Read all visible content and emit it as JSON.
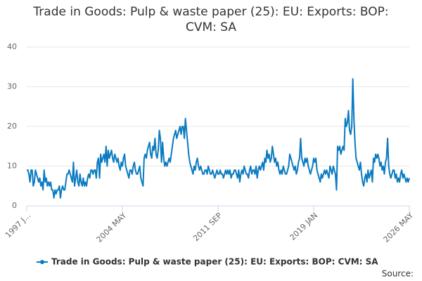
{
  "chart_data": {
    "type": "line",
    "title": "Trade in Goods: Pulp & waste paper (25): EU: Exports: BOP: CVM: SA",
    "source": "Source:",
    "categories": [
      "1997 J...",
      null,
      null,
      null,
      null,
      null,
      null,
      null,
      null,
      null,
      null,
      null,
      null,
      null,
      null,
      null,
      null,
      null,
      null,
      null,
      null,
      null,
      null,
      null,
      null,
      null,
      null,
      null,
      null,
      null,
      null,
      null,
      null,
      null,
      null,
      null,
      null,
      null,
      null,
      null,
      null,
      null,
      null,
      null,
      null,
      null,
      null,
      null,
      null,
      null,
      null,
      null,
      null,
      null,
      null,
      null,
      null,
      null,
      null,
      null,
      null,
      null,
      null,
      null,
      null,
      null,
      null,
      null,
      null,
      null,
      null,
      null,
      null,
      null,
      null,
      null,
      null,
      null,
      null,
      null,
      null,
      null,
      null,
      null,
      null,
      null,
      null,
      null,
      "2004 MAY",
      null,
      null,
      null,
      null,
      null,
      null,
      null,
      null,
      null,
      null,
      null,
      null,
      null,
      null,
      null,
      null,
      null,
      null,
      null,
      null,
      null,
      null,
      null,
      null,
      null,
      null,
      null,
      null,
      null,
      null,
      null,
      null,
      null,
      null,
      null,
      null,
      null,
      null,
      null,
      null,
      null,
      null,
      null,
      null,
      null,
      null,
      null,
      null,
      null,
      null,
      null,
      null,
      null,
      null,
      null,
      null,
      null,
      null,
      null,
      null,
      null,
      null,
      null,
      null,
      null,
      null,
      null,
      null,
      null,
      null,
      null,
      null,
      null,
      null,
      null,
      null,
      null,
      null,
      null,
      null,
      null,
      null,
      null,
      null,
      null,
      null,
      null,
      "2011 SEP",
      null,
      null,
      null,
      null,
      null,
      null,
      null,
      null,
      null,
      null,
      null,
      null,
      null,
      null,
      null,
      null,
      null,
      null,
      null,
      null,
      null,
      null,
      null,
      null,
      null,
      null,
      null,
      null,
      null,
      null,
      null,
      null,
      null,
      null,
      null,
      null,
      null,
      null,
      null,
      null,
      null,
      null,
      null,
      null,
      null,
      null,
      null,
      null,
      null,
      null,
      null,
      null,
      null,
      null,
      null,
      null,
      null,
      null,
      null,
      null,
      null,
      null,
      null,
      null,
      null,
      null,
      null,
      null,
      null,
      null,
      null,
      null,
      null,
      null,
      null,
      null,
      null,
      null,
      null,
      null,
      null,
      null,
      null,
      null,
      null,
      null,
      null,
      "2019 JAN",
      null,
      null,
      null,
      null,
      null,
      null,
      null,
      null,
      null,
      null,
      null,
      null,
      null,
      null,
      null,
      null,
      null,
      null,
      null,
      null,
      null,
      null,
      null,
      null,
      null,
      null,
      null,
      null,
      null,
      null,
      null,
      null,
      null,
      null,
      null,
      null,
      null,
      null,
      null,
      null,
      null,
      null,
      null,
      null,
      null,
      null,
      null,
      null,
      null,
      null,
      null,
      null,
      null,
      null,
      null,
      null,
      null,
      null,
      null,
      null,
      null,
      null,
      null,
      null,
      null,
      null,
      null,
      null,
      null,
      null,
      null,
      null,
      null,
      null,
      null,
      null,
      null,
      null,
      null,
      null,
      null,
      null,
      null,
      null,
      null,
      null,
      null,
      "2026 MAY"
    ],
    "series": [
      {
        "name": "Trade in Goods: Pulp & waste paper (25): EU: Exports: BOP: CVM: SA",
        "color": "#0b7bc1",
        "values": [
          9,
          9,
          8,
          6,
          9,
          9,
          5,
          6,
          9,
          8,
          7,
          6,
          7,
          5,
          6,
          4,
          9,
          6,
          7,
          5,
          6,
          5,
          6,
          4,
          4,
          2,
          4,
          3,
          4,
          4,
          5,
          2,
          4,
          5,
          4,
          4,
          6,
          8,
          8,
          9,
          8,
          7,
          6,
          11,
          5,
          7,
          9,
          6,
          5,
          8,
          6,
          5,
          7,
          5,
          6,
          5,
          7,
          8,
          7,
          9,
          9,
          8,
          9,
          9,
          7,
          11,
          12,
          7,
          13,
          11,
          12,
          13,
          11,
          15,
          10,
          14,
          12,
          13,
          14,
          12,
          11,
          13,
          12,
          11,
          12,
          10,
          9,
          11,
          10,
          12,
          13,
          10,
          9,
          8,
          7,
          9,
          9,
          8,
          10,
          11,
          9,
          8,
          8,
          9,
          10,
          7,
          6,
          5,
          12,
          13,
          12,
          14,
          15,
          16,
          13,
          12,
          15,
          14,
          17,
          13,
          12,
          14,
          19,
          17,
          11,
          16,
          12,
          10,
          11,
          10,
          11,
          12,
          11,
          13,
          15,
          17,
          18,
          19,
          17,
          18,
          19,
          20,
          18,
          20,
          20,
          17,
          22,
          19,
          16,
          13,
          11,
          10,
          9,
          8,
          10,
          9,
          11,
          12,
          10,
          9,
          10,
          9,
          8,
          8,
          9,
          9,
          8,
          10,
          9,
          8,
          8,
          9,
          8,
          7,
          8,
          9,
          8,
          8,
          9,
          8,
          8,
          7,
          8,
          9,
          8,
          9,
          8,
          9,
          7,
          8,
          8,
          9,
          9,
          8,
          7,
          9,
          6,
          8,
          9,
          8,
          10,
          9,
          8,
          8,
          7,
          9,
          10,
          8,
          9,
          9,
          8,
          10,
          7,
          9,
          10,
          9,
          10,
          11,
          9,
          12,
          11,
          14,
          12,
          13,
          11,
          12,
          15,
          13,
          11,
          12,
          10,
          11,
          9,
          8,
          9,
          8,
          10,
          9,
          8,
          8,
          9,
          10,
          13,
          12,
          11,
          10,
          9,
          10,
          8,
          9,
          11,
          12,
          17,
          12,
          11,
          10,
          12,
          11,
          12,
          10,
          9,
          8,
          9,
          10,
          12,
          11,
          12,
          9,
          8,
          7,
          6,
          8,
          7,
          8,
          9,
          8,
          9,
          8,
          7,
          10,
          9,
          8,
          10,
          9,
          8,
          4,
          15,
          14,
          15,
          13,
          14,
          15,
          14,
          22,
          20,
          21,
          24,
          19,
          18,
          20,
          32,
          22,
          16,
          12,
          11,
          10,
          9,
          11,
          8,
          6,
          5,
          7,
          8,
          6,
          9,
          7,
          8,
          9,
          6,
          12,
          11,
          13,
          12,
          13,
          12,
          10,
          11,
          9,
          10,
          8,
          11,
          12,
          17,
          10,
          8,
          7,
          8,
          9,
          9,
          7,
          8,
          6,
          7,
          6,
          8,
          9,
          7,
          8,
          7,
          6,
          7,
          6,
          7
        ]
      }
    ],
    "ylim": [
      0,
      40
    ],
    "yticks": [
      0,
      10,
      20,
      30,
      40
    ],
    "grid": true,
    "legend": "bottom"
  }
}
